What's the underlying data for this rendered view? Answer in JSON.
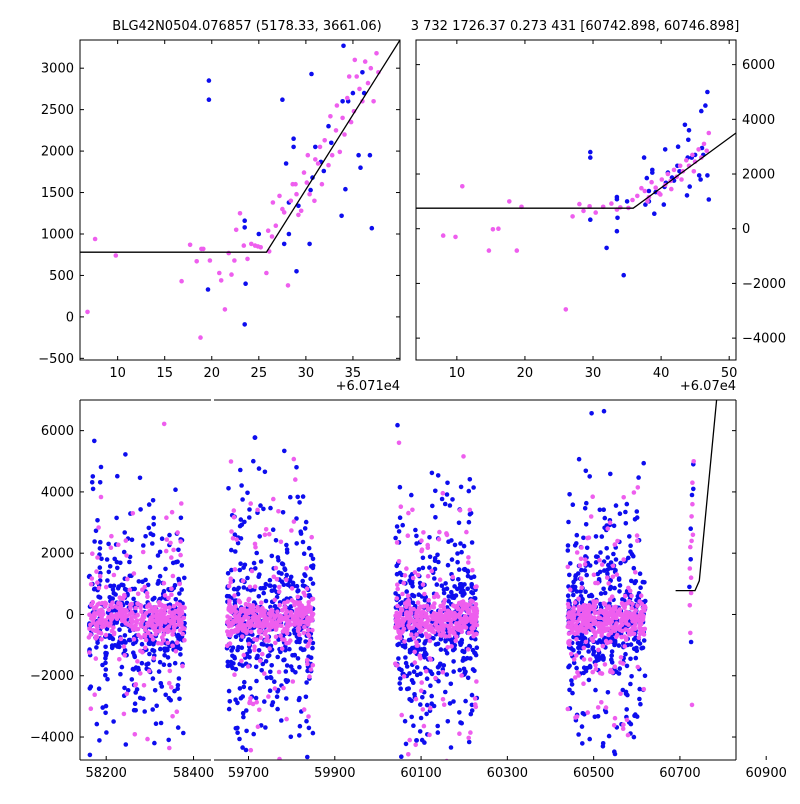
{
  "titles": {
    "left": "BLG42N0504.076857 (5178.33, 3661.06)",
    "right": "3 732 1726.37 0.273 431 [60742.898, 60746.898]"
  },
  "colors": {
    "blue": "#0d0dee",
    "pink": "#ee5eee",
    "line": "#000000"
  },
  "chart_data": [
    {
      "name": "top-left",
      "type": "scatter",
      "offset_label": "+6.071e4",
      "xlim": [
        6,
        40
      ],
      "ylim": [
        -520,
        3340
      ],
      "xticks": [
        10,
        15,
        20,
        25,
        30,
        35
      ],
      "yticks": [
        -500,
        0,
        500,
        1000,
        1500,
        2000,
        2500,
        3000
      ],
      "model_line": {
        "x": [
          6,
          25.8,
          40
        ],
        "y": [
          780,
          780,
          3340
        ]
      },
      "series": [
        {
          "name": "blue",
          "points": [
            [
              19.7,
              2850
            ],
            [
              19.7,
              2620
            ],
            [
              27.5,
              2620
            ],
            [
              28.7,
              2150
            ],
            [
              28.7,
              2050
            ],
            [
              30.6,
              2930
            ],
            [
              31.0,
              2050
            ],
            [
              34.0,
              3270
            ],
            [
              36.2,
              2700
            ],
            [
              36.8,
              1950
            ],
            [
              35.6,
              1950
            ],
            [
              35.8,
              1800
            ],
            [
              34.2,
              1540
            ],
            [
              37.0,
              1070
            ],
            [
              33.8,
              1220
            ],
            [
              30.4,
              880
            ],
            [
              28.2,
              1000
            ],
            [
              27.7,
              880
            ],
            [
              25.0,
              1000
            ],
            [
              23.5,
              1160
            ],
            [
              23.5,
              1080
            ],
            [
              23.5,
              -90
            ],
            [
              19.6,
              330
            ],
            [
              23.6,
              400
            ],
            [
              29.0,
              550
            ],
            [
              30.5,
              1530
            ],
            [
              31.6,
              1870
            ],
            [
              29.2,
              1340
            ],
            [
              28.2,
              1380
            ],
            [
              32.7,
              2100
            ],
            [
              32.4,
              2300
            ],
            [
              33.9,
              2600
            ],
            [
              35.0,
              2700
            ],
            [
              36.0,
              2950
            ],
            [
              31.9,
              1760
            ],
            [
              30.7,
              1680
            ],
            [
              27.9,
              1850
            ],
            [
              34.5,
              2600
            ]
          ]
        },
        {
          "name": "pink",
          "points": [
            [
              6.8,
              60
            ],
            [
              7.6,
              940
            ],
            [
              9.8,
              740
            ],
            [
              16.8,
              430
            ],
            [
              17.7,
              870
            ],
            [
              18.4,
              670
            ],
            [
              18.9,
              820
            ],
            [
              19.1,
              820
            ],
            [
              18.8,
              -250
            ],
            [
              19.8,
              680
            ],
            [
              20.8,
              530
            ],
            [
              21.0,
              440
            ],
            [
              21.4,
              90
            ],
            [
              21.8,
              770
            ],
            [
              22.1,
              510
            ],
            [
              22.6,
              1050
            ],
            [
              23.0,
              1250
            ],
            [
              23.4,
              860
            ],
            [
              23.8,
              700
            ],
            [
              24.2,
              880
            ],
            [
              24.6,
              860
            ],
            [
              25.2,
              840
            ],
            [
              25.8,
              530
            ],
            [
              26.1,
              790
            ],
            [
              26.4,
              970
            ],
            [
              26.5,
              1380
            ],
            [
              26.8,
              1100
            ],
            [
              27.2,
              1460
            ],
            [
              27.7,
              1260
            ],
            [
              28.1,
              380
            ],
            [
              28.4,
              1400
            ],
            [
              28.6,
              1600
            ],
            [
              29.0,
              1480
            ],
            [
              29.2,
              1230
            ],
            [
              29.5,
              1280
            ],
            [
              29.8,
              1740
            ],
            [
              30.1,
              1620
            ],
            [
              30.4,
              1480
            ],
            [
              30.9,
              1400
            ],
            [
              31.0,
              1900
            ],
            [
              31.3,
              1850
            ],
            [
              31.7,
              1600
            ],
            [
              32.0,
              2130
            ],
            [
              32.4,
              1830
            ],
            [
              32.8,
              1950
            ],
            [
              33.2,
              2250
            ],
            [
              33.6,
              1990
            ],
            [
              33.9,
              2400
            ],
            [
              34.1,
              2200
            ],
            [
              34.4,
              2640
            ],
            [
              34.8,
              2350
            ],
            [
              35.1,
              2480
            ],
            [
              35.4,
              2900
            ],
            [
              35.7,
              2750
            ],
            [
              36.0,
              2600
            ],
            [
              36.3,
              3080
            ],
            [
              36.6,
              2820
            ],
            [
              36.9,
              3000
            ],
            [
              37.2,
              2600
            ],
            [
              37.5,
              3180
            ],
            [
              37.7,
              2950
            ],
            [
              35.2,
              3100
            ],
            [
              34.6,
              2900
            ],
            [
              33.3,
              2550
            ],
            [
              32.6,
              2420
            ],
            [
              31.5,
              2050
            ],
            [
              30.2,
              1950
            ],
            [
              28.9,
              1600
            ],
            [
              27.5,
              1300
            ],
            [
              26.0,
              1040
            ],
            [
              24.9,
              850
            ],
            [
              22.4,
              680
            ]
          ]
        }
      ]
    },
    {
      "name": "top-right",
      "type": "scatter",
      "offset_label": "+6.07e4",
      "xlim": [
        4,
        51
      ],
      "ylim": [
        -4800,
        6900
      ],
      "xticks": [
        10,
        20,
        30,
        40,
        50
      ],
      "yticks": [
        -4000,
        -2000,
        0,
        2000,
        4000,
        6000
      ],
      "model_line": {
        "x": [
          4,
          35.9,
          51
        ],
        "y": [
          750,
          750,
          3500
        ]
      },
      "series": [
        {
          "name": "blue",
          "points": [
            [
              29.6,
              2800
            ],
            [
              29.6,
              2600
            ],
            [
              37.5,
              2600
            ],
            [
              38.7,
              2150
            ],
            [
              38.7,
              2050
            ],
            [
              40.6,
              2900
            ],
            [
              41.0,
              2050
            ],
            [
              44.0,
              3250
            ],
            [
              46.2,
              2700
            ],
            [
              46.8,
              1950
            ],
            [
              45.6,
              1950
            ],
            [
              45.8,
              1800
            ],
            [
              44.2,
              1540
            ],
            [
              47.0,
              1070
            ],
            [
              43.8,
              1220
            ],
            [
              40.4,
              880
            ],
            [
              38.2,
              1000
            ],
            [
              37.7,
              880
            ],
            [
              35.0,
              1000
            ],
            [
              33.5,
              1160
            ],
            [
              33.5,
              1080
            ],
            [
              33.5,
              -90
            ],
            [
              29.6,
              330
            ],
            [
              33.6,
              400
            ],
            [
              39.0,
              550
            ],
            [
              40.5,
              1530
            ],
            [
              41.6,
              1870
            ],
            [
              39.2,
              1340
            ],
            [
              38.2,
              1380
            ],
            [
              42.7,
              2100
            ],
            [
              42.4,
              2300
            ],
            [
              43.9,
              2600
            ],
            [
              45.0,
              2700
            ],
            [
              46.0,
              2950
            ],
            [
              41.9,
              1760
            ],
            [
              40.7,
              1680
            ],
            [
              37.9,
              1850
            ],
            [
              44.5,
              2600
            ],
            [
              46.8,
              5000
            ],
            [
              46.5,
              4500
            ],
            [
              43.5,
              3800
            ],
            [
              44.1,
              3600
            ],
            [
              32.0,
              -700
            ],
            [
              34.5,
              -1700
            ],
            [
              45.9,
              4300
            ],
            [
              42.5,
              3000
            ]
          ]
        },
        {
          "name": "pink",
          "points": [
            [
              8.0,
              -250
            ],
            [
              9.8,
              -300
            ],
            [
              10.8,
              1550
            ],
            [
              14.7,
              -800
            ],
            [
              15.3,
              -20
            ],
            [
              16.1,
              0
            ],
            [
              17.7,
              1000
            ],
            [
              18.8,
              -800
            ],
            [
              19.5,
              800
            ],
            [
              26.0,
              -2950
            ],
            [
              27.0,
              450
            ],
            [
              28.0,
              900
            ],
            [
              28.6,
              650
            ],
            [
              29.5,
              820
            ],
            [
              30.4,
              590
            ],
            [
              31.5,
              800
            ],
            [
              32.7,
              920
            ],
            [
              33.5,
              700
            ],
            [
              34.0,
              780
            ],
            [
              35.2,
              760
            ],
            [
              35.8,
              1050
            ],
            [
              36.5,
              1200
            ],
            [
              37.1,
              1480
            ],
            [
              37.6,
              1380
            ],
            [
              38.2,
              1150
            ],
            [
              38.6,
              1700
            ],
            [
              39.2,
              1500
            ],
            [
              39.7,
              1300
            ],
            [
              40.1,
              1800
            ],
            [
              40.6,
              1600
            ],
            [
              41.0,
              2000
            ],
            [
              41.4,
              1750
            ],
            [
              41.9,
              2150
            ],
            [
              42.3,
              1900
            ],
            [
              42.8,
              2300
            ],
            [
              43.2,
              2100
            ],
            [
              43.7,
              2500
            ],
            [
              44.1,
              2300
            ],
            [
              44.6,
              2700
            ],
            [
              45.0,
              2450
            ],
            [
              45.5,
              2900
            ],
            [
              45.9,
              2600
            ],
            [
              46.3,
              3100
            ],
            [
              46.7,
              2850
            ],
            [
              47.0,
              3500
            ],
            [
              44.8,
              2100
            ],
            [
              43.0,
              1800
            ],
            [
              41.5,
              1450
            ],
            [
              39.9,
              1250
            ],
            [
              38.0,
              1000
            ]
          ]
        }
      ]
    },
    {
      "name": "bottom",
      "type": "scatter",
      "ylim": [
        -4750,
        7000
      ],
      "yticks": [
        -4000,
        -2000,
        0,
        2000,
        4000,
        6000
      ],
      "segments": [
        {
          "xlim": [
            58140,
            58440
          ],
          "xticks": [
            58200,
            58400
          ],
          "clusters": [
            [
              58160,
              58380
            ]
          ]
        },
        {
          "xlim": [
            59620,
            60830
          ],
          "xticks": [
            59700,
            59900,
            60100,
            60300,
            60500
          ],
          "clusters": [
            [
              59650,
              59850
            ],
            [
              60040,
              60230
            ],
            [
              60440,
              60620
            ]
          ]
        },
        {
          "xlim": [
            60650,
            61010
          ],
          "xticks": [
            60700,
            60900
          ],
          "clusters": []
        }
      ],
      "model_line": {
        "x": [
          60690,
          60735,
          60745,
          60785
        ],
        "y": [
          780,
          780,
          1100,
          7000
        ]
      }
    }
  ]
}
